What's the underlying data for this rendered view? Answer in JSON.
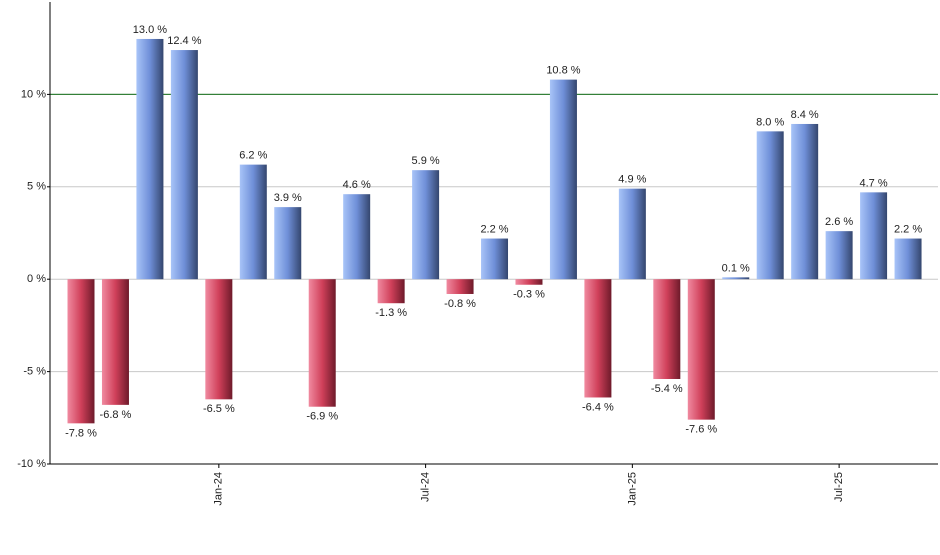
{
  "chart_data": {
    "type": "bar",
    "categories": [
      null,
      null,
      null,
      null,
      "Jan-24",
      null,
      null,
      null,
      null,
      null,
      "Jul-24",
      null,
      null,
      null,
      null,
      null,
      "Jan-25",
      null,
      null,
      null,
      null,
      null,
      "Jul-25",
      null,
      null
    ],
    "values": [
      -7.8,
      -6.8,
      13.0,
      12.4,
      -6.5,
      6.2,
      3.9,
      -6.9,
      4.6,
      -1.3,
      5.9,
      -0.8,
      2.2,
      -0.3,
      10.8,
      -6.4,
      4.9,
      -5.4,
      -7.6,
      0.1,
      8.0,
      8.4,
      2.6,
      4.7,
      2.2
    ],
    "value_labels": [
      "-7.8 %",
      "-6.8 %",
      "13.0 %",
      "12.4 %",
      "-6.5 %",
      "6.2 %",
      "3.9 %",
      "-6.9 %",
      "4.6 %",
      "-1.3 %",
      "5.9 %",
      "-0.8 %",
      "2.2 %",
      "-0.3 %",
      "10.8 %",
      "-6.4 %",
      "4.9 %",
      "-5.4 %",
      "-7.6 %",
      "0.1 %",
      "8.0 %",
      "8.4 %",
      "2.6 %",
      "4.7 %",
      "2.2 %"
    ],
    "colors": {
      "positive": "#6f8fd8",
      "negative": "#d0405a"
    },
    "ylim": [
      -10,
      15
    ],
    "yticks": [
      {
        "value": -10,
        "label": "-10 %"
      },
      {
        "value": -5,
        "label": "-5 %"
      },
      {
        "value": 0,
        "label": "0 %"
      },
      {
        "value": 5,
        "label": "5 %"
      },
      {
        "value": 10,
        "label": "10 %"
      }
    ],
    "grid": true,
    "reference_line": {
      "value": 10,
      "color": "#2e7d32"
    }
  }
}
